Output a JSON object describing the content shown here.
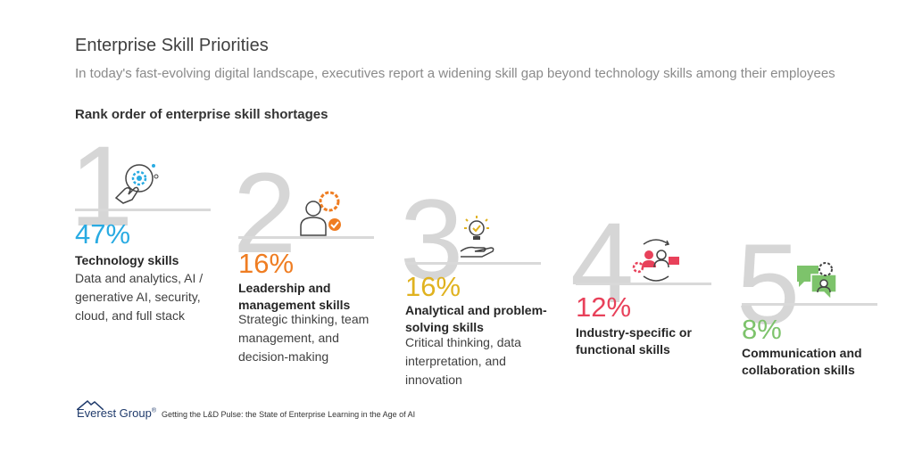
{
  "header": {
    "title": "Enterprise Skill Priorities",
    "subtitle": "In today's fast-evolving digital landscape, executives report a widening skill gap beyond technology skills among their employees",
    "section_title": "Rank order of enterprise skill shortages"
  },
  "chart_data": {
    "type": "table",
    "title": "Rank order of enterprise skill shortages",
    "items": [
      {
        "rank": "1",
        "value": 47,
        "percent_label": "47%",
        "label": "Technology skills",
        "description": "Data and analytics, AI / generative AI, security, cloud, and full stack",
        "color": "#29abe2",
        "icon": "technology-gear-hand-icon"
      },
      {
        "rank": "2",
        "value": 16,
        "percent_label": "16%",
        "label": "Leadership and management skills",
        "description": "Strategic thinking, team management, and decision-making",
        "color": "#ef7d22",
        "icon": "leader-gear-check-icon"
      },
      {
        "rank": "3",
        "value": 16,
        "percent_label": "16%",
        "label": "Analytical and problem-solving skills",
        "description": "Critical thinking, data interpretation, and innovation",
        "color": "#e0b21f",
        "icon": "lightbulb-hand-icon"
      },
      {
        "rank": "4",
        "value": 12,
        "percent_label": "12%",
        "label": "Industry-specific or functional skills",
        "description": "",
        "color": "#e8415a",
        "icon": "people-exchange-icon"
      },
      {
        "rank": "5",
        "value": 8,
        "percent_label": "8%",
        "label": "Communication and collaboration skills",
        "description": "",
        "color": "#7dc36b",
        "icon": "chat-gear-icon"
      }
    ]
  },
  "footer": {
    "brand": "Everest Group",
    "registered": "®",
    "source": "Getting the L&D Pulse: the State of Enterprise Learning in the Age of AI"
  }
}
